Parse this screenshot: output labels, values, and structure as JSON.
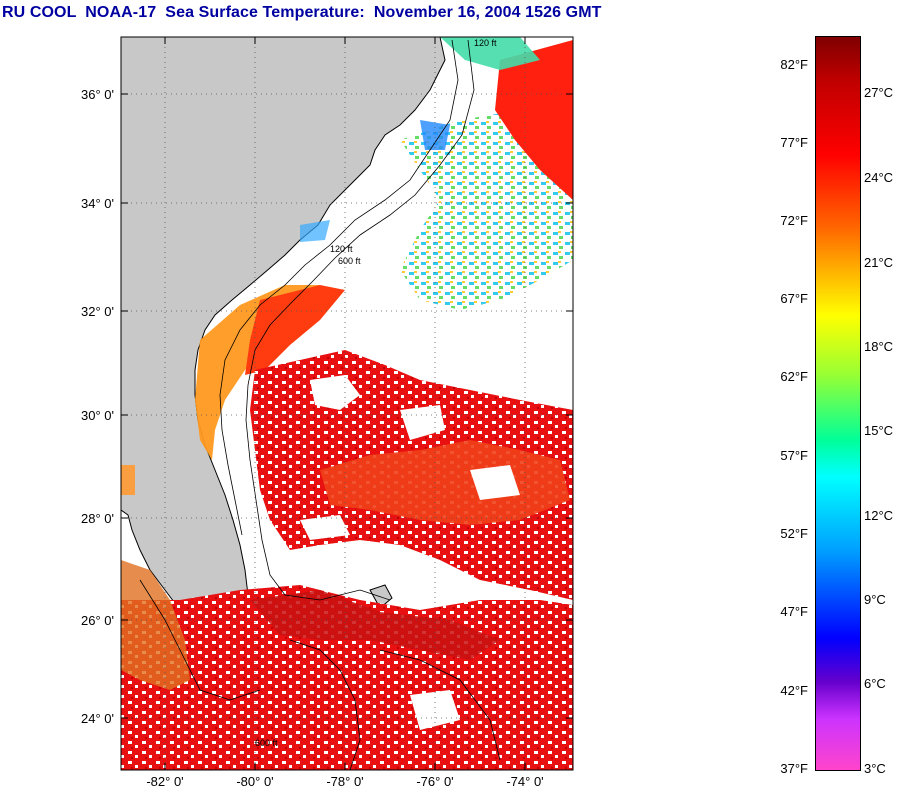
{
  "title": "RU COOL  NOAA-17  Sea Surface Temperature:  November 16, 2004 1526 GMT",
  "map": {
    "lat_labels": [
      "36° 0'",
      "34° 0'",
      "32° 0'",
      "30° 0'",
      "28° 0'",
      "26° 0'",
      "24° 0'"
    ],
    "lon_labels": [
      "-82° 0'",
      "-80° 0'",
      "-78° 0'",
      "-76° 0'",
      "-74° 0'"
    ],
    "lat_range": [
      23.0,
      37.0
    ],
    "lon_range": [
      -83.0,
      -73.0
    ],
    "contour_labels": [
      "120 ft",
      "600 ft"
    ],
    "colors": {
      "land": "#c8c8c8",
      "no_data": "#ffffff",
      "grid": "#555555",
      "coastline": "#000000"
    }
  },
  "colorbar": {
    "fahrenheit_labels": [
      "82°F",
      "77°F",
      "72°F",
      "67°F",
      "62°F",
      "57°F",
      "52°F",
      "47°F",
      "42°F",
      "37°F"
    ],
    "celsius_labels": [
      "27°C",
      "24°C",
      "21°C",
      "18°C",
      "15°C",
      "12°C",
      "9°C",
      "6°C",
      "3°C"
    ]
  }
}
